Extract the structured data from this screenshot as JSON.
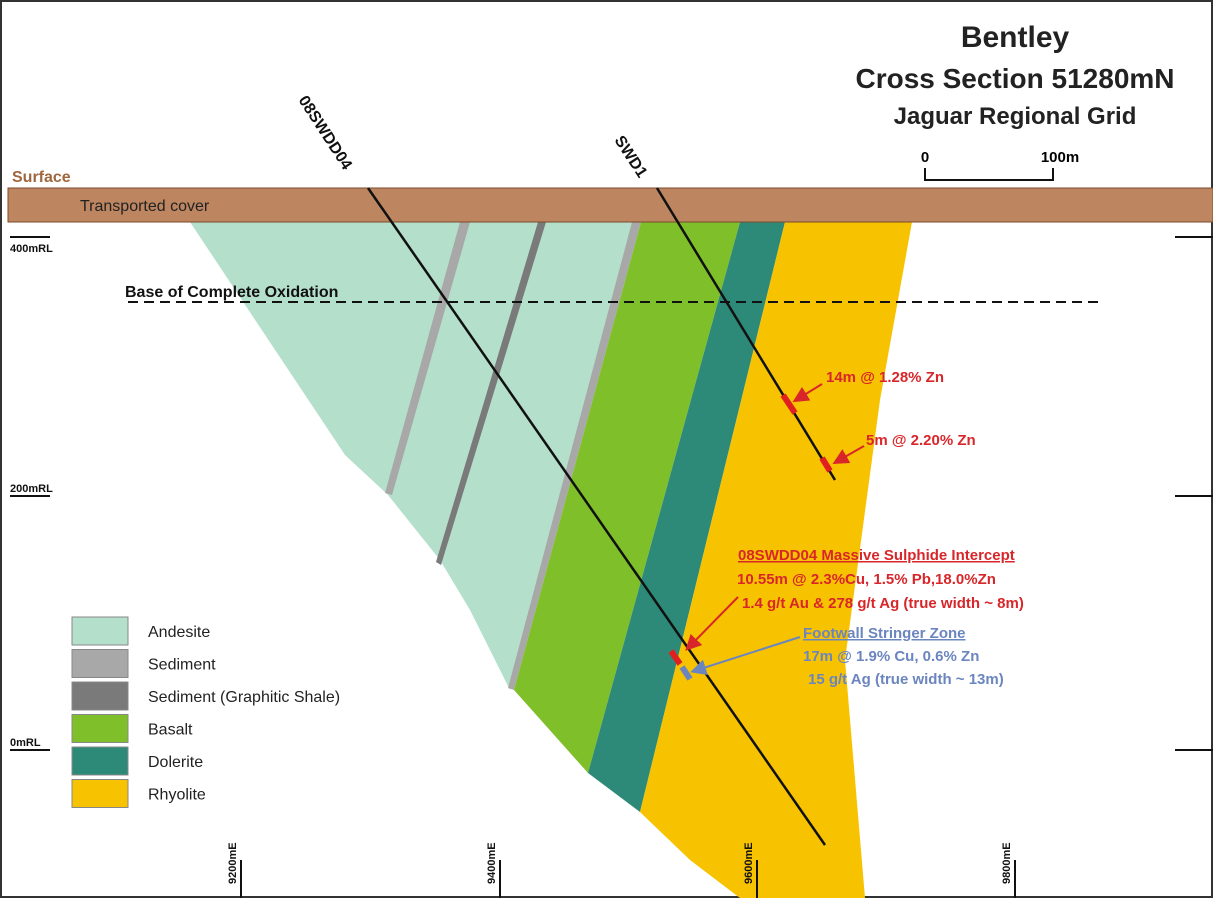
{
  "title": {
    "name": "Bentley",
    "section": "Cross Section 51280mN",
    "grid": "Jaguar Regional Grid"
  },
  "scale_bar": {
    "start": "0",
    "end": "100m"
  },
  "surface": "Surface",
  "cover": "Transported cover",
  "rl_labels": [
    "400mRL",
    "200mRL",
    "0mRL"
  ],
  "easting_labels": [
    "9200mE",
    "9400mE",
    "9600mE",
    "9800mE"
  ],
  "oxidation": "Base of Complete Oxidation",
  "holes": [
    "08SWDD04",
    "SWD1"
  ],
  "intercepts": {
    "swd1_upper": "14m @ 1.28% Zn",
    "swd1_lower": "5m @ 2.20% Zn",
    "massive": {
      "title": "08SWDD04 Massive Sulphide Intercept",
      "line1": "10.55m @ 2.3%Cu, 1.5% Pb,18.0%Zn",
      "line2": "1.4 g/t Au & 278 g/t Ag (true width ~ 8m)"
    },
    "stringer": {
      "title": "Footwall Stringer Zone",
      "line1": "17m @ 1.9% Cu, 0.6% Zn",
      "line2": "15 g/t Ag (true width ~ 13m)"
    }
  },
  "legend": [
    {
      "label": "Andesite",
      "color": "#b4dfcb"
    },
    {
      "label": "Sediment",
      "color": "#a8a8a8"
    },
    {
      "label": "Sediment (Graphitic Shale)",
      "color": "#7a7a7a"
    },
    {
      "label": "Basalt",
      "color": "#7fbf2a"
    },
    {
      "label": "Dolerite",
      "color": "#2e8a78"
    },
    {
      "label": "Rhyolite",
      "color": "#f7c200"
    }
  ]
}
